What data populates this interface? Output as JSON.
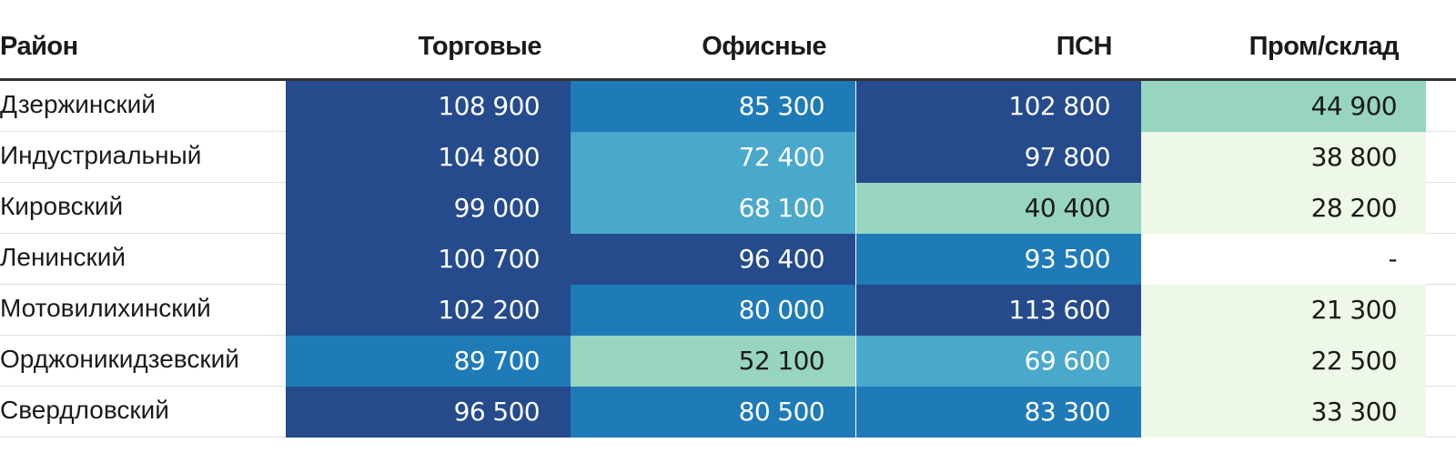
{
  "chart_data": {
    "type": "heatmap",
    "row_header": "Район",
    "columns": [
      "Торговые",
      "Офисные",
      "ПСН",
      "Пром/склад"
    ],
    "rows": [
      {
        "label": "Дзержинский",
        "values": [
          "108 900",
          "85 300",
          "102 800",
          "44 900"
        ],
        "numeric": [
          108900,
          85300,
          102800,
          44900
        ]
      },
      {
        "label": "Индустриальный",
        "values": [
          "104 800",
          "72 400",
          "97 800",
          "38 800"
        ],
        "numeric": [
          104800,
          72400,
          97800,
          38800
        ]
      },
      {
        "label": "Кировский",
        "values": [
          "99 000",
          "68 100",
          "40 400",
          "28 200"
        ],
        "numeric": [
          99000,
          68100,
          40400,
          28200
        ]
      },
      {
        "label": "Ленинский",
        "values": [
          "100 700",
          "96 400",
          "93 500",
          "-"
        ],
        "numeric": [
          100700,
          96400,
          93500,
          null
        ]
      },
      {
        "label": "Мотовилихинский",
        "values": [
          "102 200",
          "80 000",
          "113 600",
          "21 300"
        ],
        "numeric": [
          102200,
          80000,
          113600,
          21300
        ]
      },
      {
        "label": "Орджоникидзевский",
        "values": [
          "89 700",
          "52 100",
          "69 600",
          "22 500"
        ],
        "numeric": [
          89700,
          52100,
          69600,
          22500
        ]
      },
      {
        "label": "Свердловский",
        "values": [
          "96 500",
          "80 500",
          "83 300",
          "33 300"
        ],
        "numeric": [
          96500,
          80500,
          83300,
          33300
        ]
      }
    ],
    "color_scale": [
      {
        "min": 95000,
        "color": "#254b8c",
        "text": "#ffffff"
      },
      {
        "min": 75000,
        "color": "#1f7ab8",
        "text": "#ffffff"
      },
      {
        "min": 60000,
        "color": "#4aa8cb",
        "text": "#ffffff"
      },
      {
        "min": 40000,
        "color": "#97d5c0",
        "text": "#1a1a1a"
      },
      {
        "min": 0,
        "color": "#eef8e8",
        "text": "#1a1a1a"
      }
    ],
    "missing_color": "#ffffff"
  }
}
